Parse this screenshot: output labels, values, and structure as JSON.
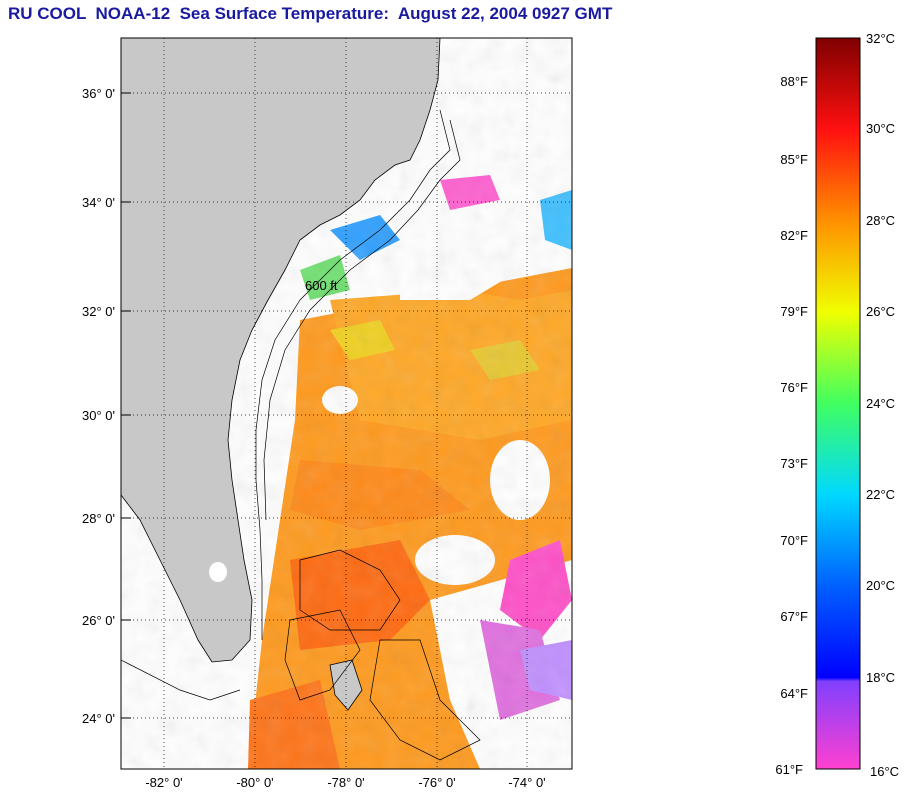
{
  "title": "RU COOL  NOAA-12  Sea Surface Temperature:  August 22, 2004 0927 GMT",
  "map": {
    "lat_labels": [
      "36° 0'",
      "34° 0'",
      "32° 0'",
      "30° 0'",
      "28° 0'",
      "26° 0'",
      "24° 0'"
    ],
    "lon_labels": [
      "-82° 0'",
      "-80° 0'",
      "-78° 0'",
      "-76° 0'",
      "-74° 0'"
    ],
    "isobath_label": "600 ft",
    "colors": {
      "land": "#c8c8c8",
      "cloud": "#ffffff",
      "warm_water": "#ff9a1e",
      "hot_water": "#ff6a10",
      "cool_water": "#20a8ff",
      "cold_water": "#ff40c0"
    }
  },
  "colorbar": {
    "fahrenheit_labels": [
      "88°F",
      "85°F",
      "82°F",
      "79°F",
      "76°F",
      "73°F",
      "70°F",
      "67°F",
      "64°F",
      "61°F"
    ],
    "celsius_labels": [
      "32°C",
      "30°C",
      "28°C",
      "26°C",
      "24°C",
      "22°C",
      "20°C",
      "18°C",
      "16°C"
    ],
    "range_c": [
      16,
      32
    ]
  }
}
